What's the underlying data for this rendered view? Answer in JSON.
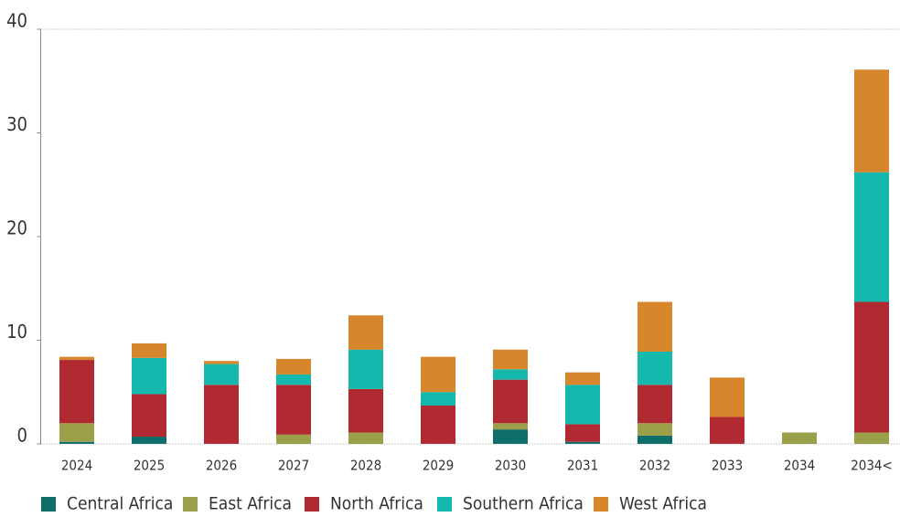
{
  "chart_data": {
    "type": "stacked_bar",
    "categories": [
      "2024",
      "2025",
      "2026",
      "2027",
      "2028",
      "2029",
      "2030",
      "2031",
      "2032",
      "2033",
      "2034",
      "2034<"
    ],
    "series": [
      {
        "name": "Central Africa",
        "color": "#0e6e6a",
        "values": [
          0.2,
          0.7,
          0,
          0,
          0,
          0,
          1.4,
          0.2,
          0.8,
          0,
          0,
          0
        ]
      },
      {
        "name": "East Africa",
        "color": "#9ba04a",
        "values": [
          1.8,
          0,
          0,
          0.9,
          1.1,
          0,
          0.6,
          0,
          1.2,
          0,
          1.1,
          1.1
        ]
      },
      {
        "name": "North Africa",
        "color": "#b22a31",
        "values": [
          6.1,
          4.1,
          5.7,
          4.8,
          4.2,
          3.7,
          4.2,
          1.7,
          3.7,
          2.6,
          0,
          12.6
        ]
      },
      {
        "name": "Southern Africa",
        "color": "#14b8ad",
        "values": [
          0,
          3.5,
          2.0,
          1.0,
          3.8,
          1.3,
          1.0,
          3.8,
          3.2,
          0,
          0,
          12.5
        ]
      },
      {
        "name": "West Africa",
        "color": "#d8862b",
        "values": [
          0.3,
          1.4,
          0.3,
          1.5,
          3.3,
          3.4,
          1.9,
          1.2,
          4.8,
          3.8,
          0,
          9.9
        ]
      }
    ],
    "ylim": [
      0,
      40
    ],
    "yticks": [
      0,
      10,
      20,
      30,
      40
    ],
    "legend": "bottom"
  }
}
